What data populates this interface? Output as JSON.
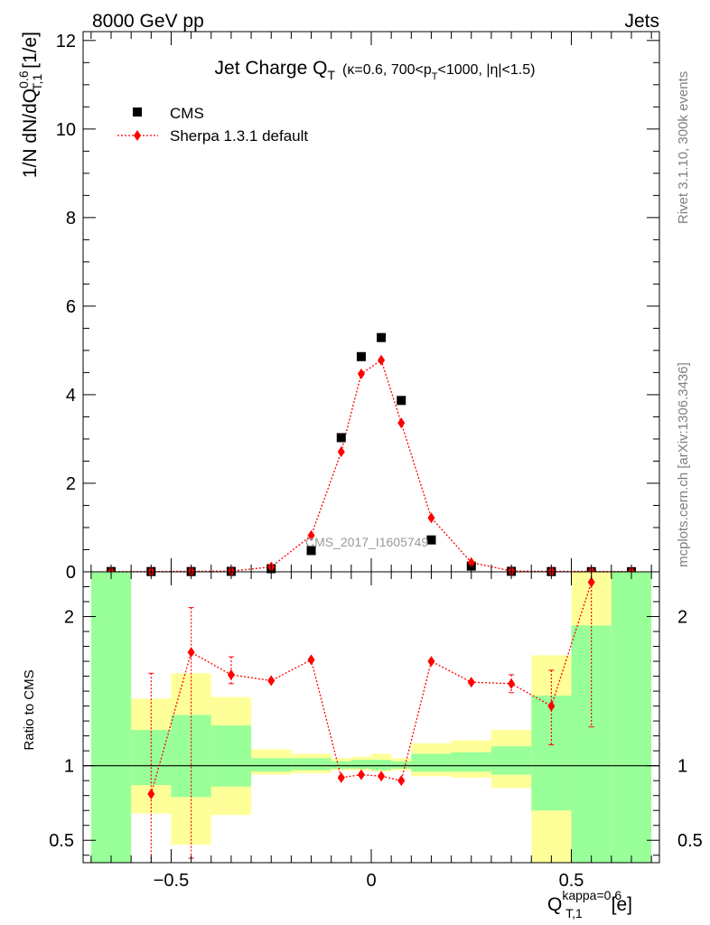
{
  "header": {
    "energy_label": "8000 GeV pp",
    "category_label": "Jets"
  },
  "side_labels": {
    "rivet": "Rivet 3.1.10,  300k events",
    "mcplots": "mcplots.cern.ch [arXiv:1306.3436]"
  },
  "watermark": "CMS_2017_I1605749",
  "colors": {
    "data": "#000000",
    "mc": "#ff0000",
    "band_inner": "#99ff99",
    "band_outer": "#ffff99"
  },
  "chart_data": [
    {
      "id": "main",
      "type": "scatter",
      "title": {
        "main": "Jet Charge Q",
        "sub": "T",
        "detail_a": "(κ=0.6, 700<p",
        "detail_sub": "T",
        "detail_b": "<1000, |η|<1.5)"
      },
      "ylabel": {
        "a": "1/N dN/dQ",
        "sup": "0.6",
        "sub": "T,1",
        "b": " [1/e]"
      },
      "xlim": [
        -0.72,
        0.72
      ],
      "ylim": [
        0,
        12.2
      ],
      "y_ticks": [
        "0",
        "2",
        "4",
        "6",
        "8",
        "10",
        "12"
      ],
      "legend": {
        "placement": "top-left",
        "data_label": "CMS",
        "mc_label": "Sherpa 1.3.1 default"
      },
      "x": [
        -0.65,
        -0.55,
        -0.45,
        -0.35,
        -0.25,
        -0.15,
        -0.075,
        -0.025,
        0.025,
        0.075,
        0.15,
        0.25,
        0.35,
        0.45,
        0.55,
        0.65
      ],
      "series": [
        {
          "name": "CMS",
          "values": [
            0.006,
            0.006,
            0.006,
            0.01,
            0.07,
            0.48,
            3.03,
            4.86,
            5.29,
            3.87,
            0.72,
            0.13,
            0.011,
            0.006,
            0.004,
            0.003
          ]
        },
        {
          "name": "Sherpa 1.3.1 default",
          "values": [
            0.003,
            0.005,
            0.011,
            0.016,
            0.11,
            0.82,
            2.71,
            4.47,
            4.78,
            3.36,
            1.22,
            0.21,
            0.019,
            0.009,
            0.009,
            0.005
          ]
        }
      ]
    },
    {
      "id": "ratio",
      "type": "line",
      "ylabel": "Ratio to CMS",
      "xlabel": {
        "a": "Q",
        "sup": "kappa=0.6",
        "sub": "T,1",
        "b": " [e]"
      },
      "xlim": [
        -0.72,
        0.72
      ],
      "ylim": [
        0.35,
        2.3
      ],
      "y_ticks": [
        "0.5",
        "1",
        "2"
      ],
      "x_ticks": [
        "−0.5",
        "0",
        "0.5"
      ],
      "reference": 1,
      "bands": [
        {
          "x0": -0.7,
          "x1": -0.6,
          "outer": [
            0.35,
            2.3
          ],
          "inner": [
            0.35,
            2.3
          ]
        },
        {
          "x0": -0.6,
          "x1": -0.5,
          "outer": [
            0.68,
            1.45
          ],
          "inner": [
            0.87,
            1.24
          ]
        },
        {
          "x0": -0.5,
          "x1": -0.4,
          "outer": [
            0.47,
            1.62
          ],
          "inner": [
            0.79,
            1.34
          ]
        },
        {
          "x0": -0.4,
          "x1": -0.3,
          "outer": [
            0.67,
            1.46
          ],
          "inner": [
            0.86,
            1.27
          ]
        },
        {
          "x0": -0.3,
          "x1": -0.2,
          "outer": [
            0.94,
            1.11
          ],
          "inner": [
            0.96,
            1.05
          ]
        },
        {
          "x0": -0.2,
          "x1": -0.1,
          "outer": [
            0.95,
            1.08
          ],
          "inner": [
            0.97,
            1.05
          ]
        },
        {
          "x0": -0.1,
          "x1": -0.05,
          "outer": [
            0.97,
            1.05
          ],
          "inner": [
            0.98,
            1.03
          ]
        },
        {
          "x0": -0.05,
          "x1": 0.0,
          "outer": [
            0.97,
            1.06
          ],
          "inner": [
            0.98,
            1.04
          ]
        },
        {
          "x0": 0.0,
          "x1": 0.05,
          "outer": [
            0.96,
            1.08
          ],
          "inner": [
            0.97,
            1.04
          ]
        },
        {
          "x0": 0.05,
          "x1": 0.1,
          "outer": [
            0.97,
            1.05
          ],
          "inner": [
            0.98,
            1.03
          ]
        },
        {
          "x0": 0.1,
          "x1": 0.2,
          "outer": [
            0.93,
            1.15
          ],
          "inner": [
            0.96,
            1.08
          ]
        },
        {
          "x0": 0.2,
          "x1": 0.3,
          "outer": [
            0.92,
            1.17
          ],
          "inner": [
            0.96,
            1.09
          ]
        },
        {
          "x0": 0.3,
          "x1": 0.4,
          "outer": [
            0.85,
            1.24
          ],
          "inner": [
            0.94,
            1.13
          ]
        },
        {
          "x0": 0.4,
          "x1": 0.5,
          "outer": [
            0.35,
            1.74
          ],
          "inner": [
            0.7,
            1.47
          ]
        },
        {
          "x0": 0.5,
          "x1": 0.6,
          "outer": [
            0.35,
            2.3
          ],
          "inner": [
            0.35,
            1.94
          ]
        },
        {
          "x0": 0.6,
          "x1": 0.7,
          "outer": [
            0.35,
            2.3
          ],
          "inner": [
            0.35,
            2.3
          ]
        }
      ],
      "x": [
        -0.55,
        -0.45,
        -0.35,
        -0.25,
        -0.15,
        -0.075,
        -0.025,
        0.025,
        0.075,
        0.15,
        0.25,
        0.35,
        0.45,
        0.55
      ],
      "values": [
        0.81,
        1.76,
        1.61,
        1.57,
        1.71,
        0.92,
        0.94,
        0.93,
        0.9,
        1.7,
        1.56,
        1.55,
        1.4,
        2.23
      ],
      "err_lo": [
        0.35,
        0.38,
        1.55,
        1.56,
        1.7,
        0.91,
        0.93,
        0.92,
        0.89,
        1.69,
        1.55,
        1.49,
        1.14,
        1.26
      ],
      "err_hi": [
        1.62,
        2.06,
        1.73,
        1.58,
        1.72,
        0.93,
        0.95,
        0.94,
        0.91,
        1.71,
        1.57,
        1.61,
        1.64,
        2.3
      ]
    }
  ]
}
